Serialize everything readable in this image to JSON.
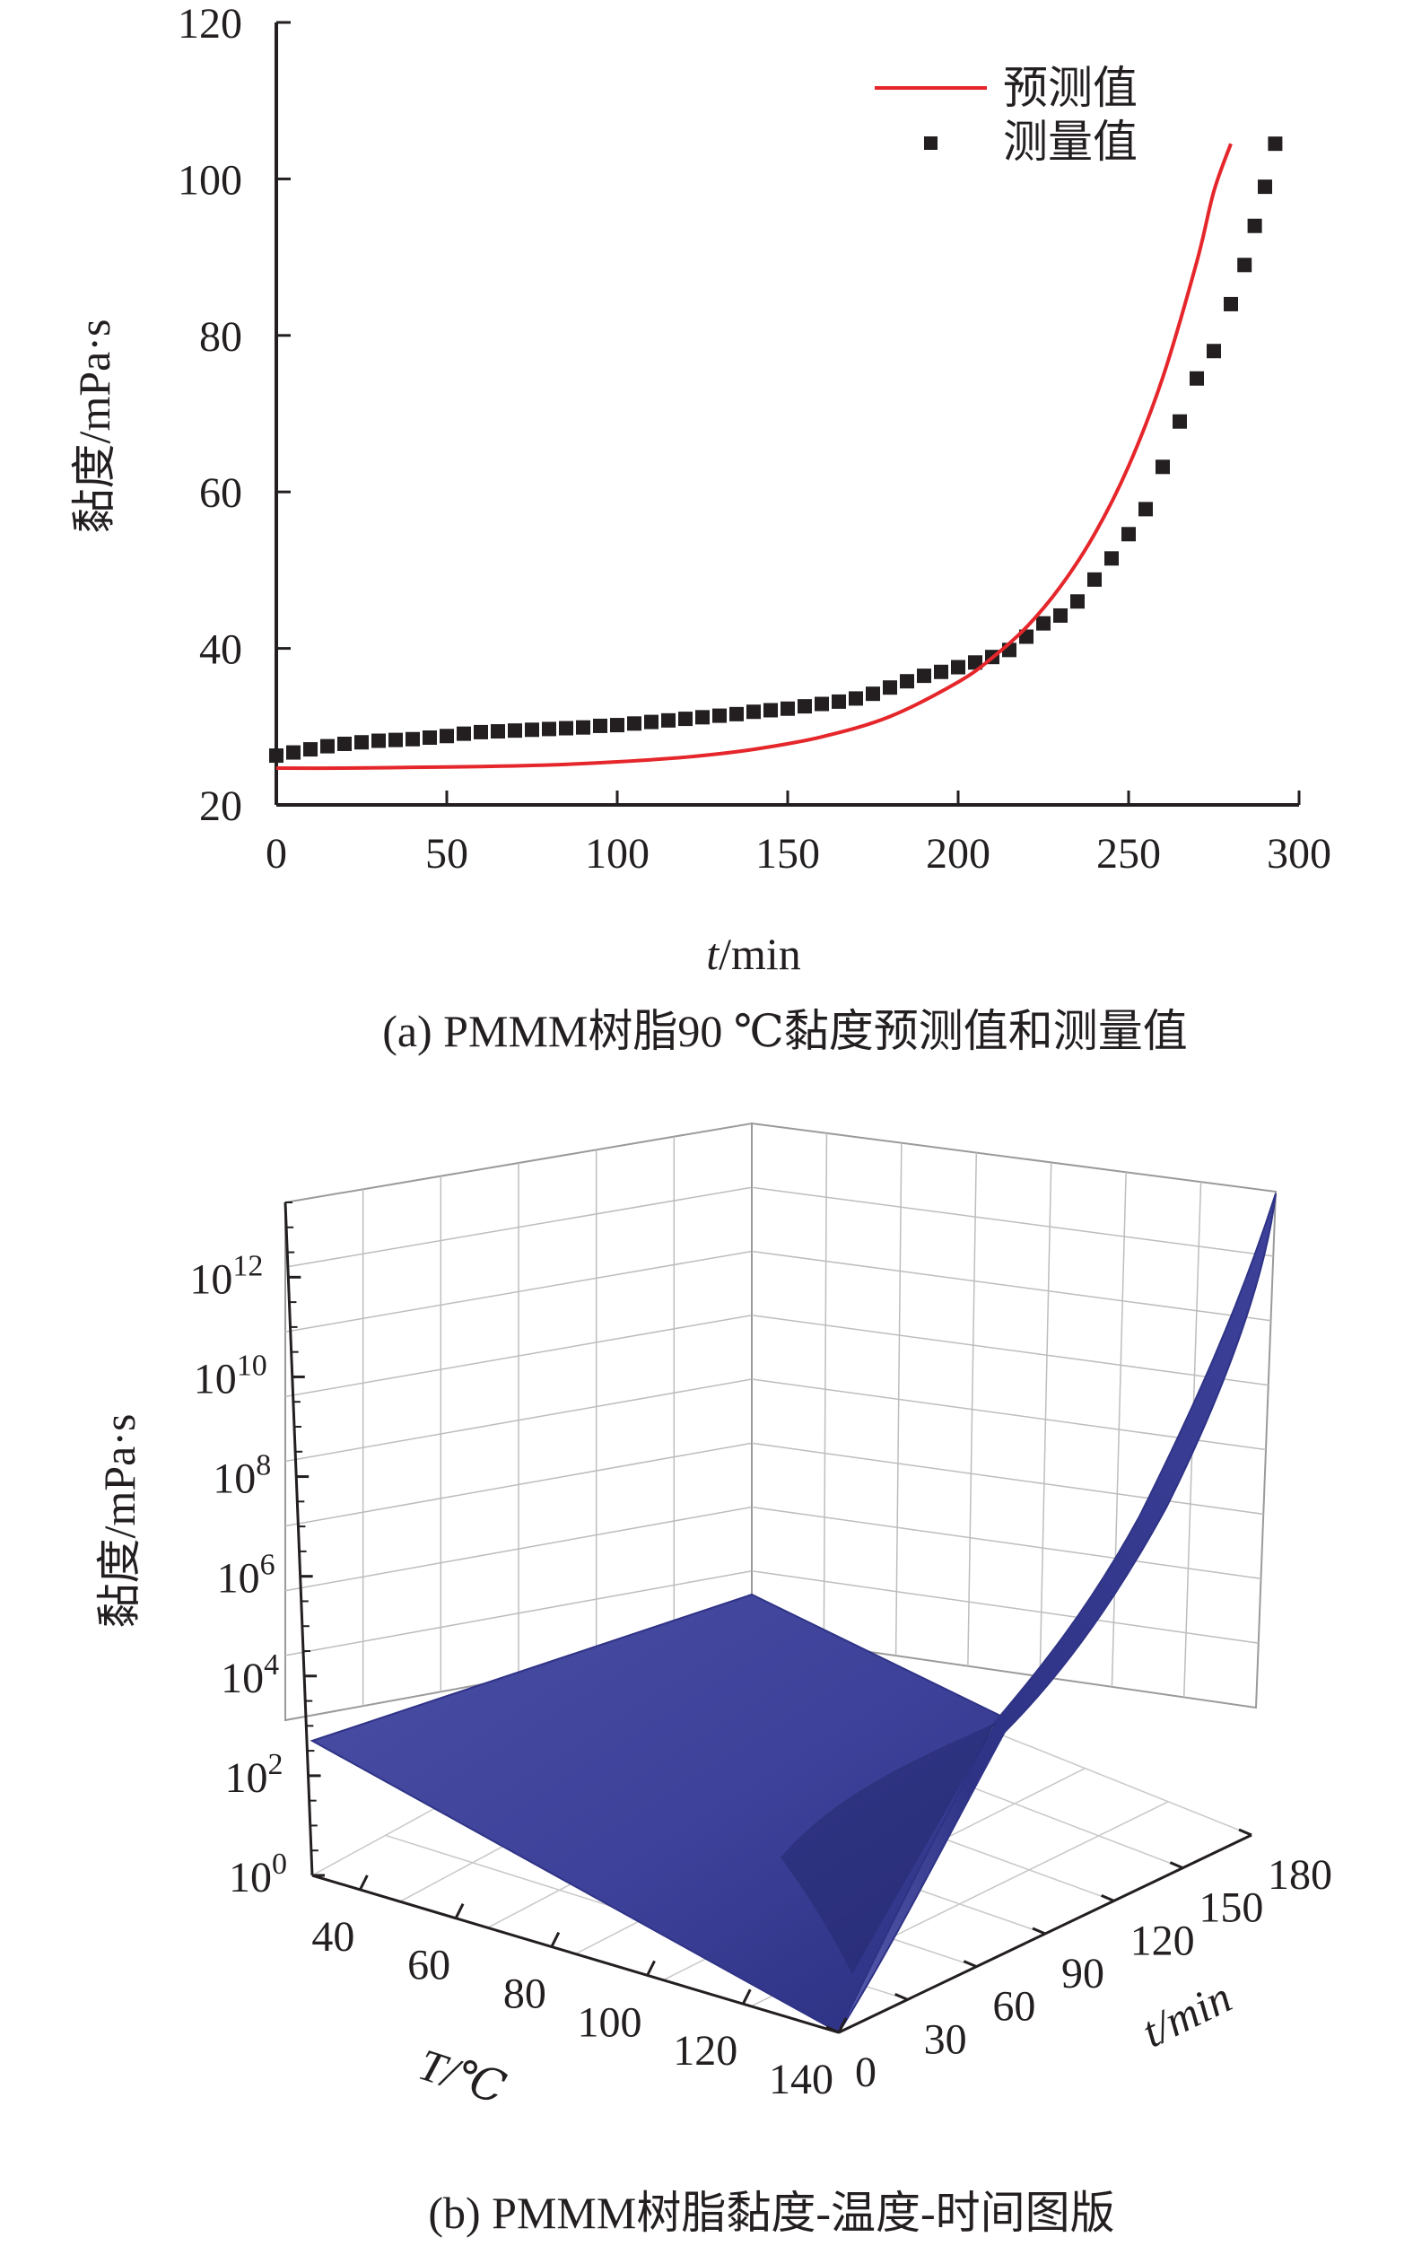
{
  "chart_data": [
    {
      "type": "line",
      "caption": "(a) PMMM树脂90 ℃黏度预测值和测量值",
      "xlabel": "t/min",
      "ylabel": "黏度/mPa·s",
      "xlim": [
        0,
        300
      ],
      "ylim": [
        20,
        120
      ],
      "xticks": [
        "0",
        "50",
        "100",
        "150",
        "200",
        "250",
        "300"
      ],
      "yticks": [
        "20",
        "40",
        "60",
        "80",
        "100",
        "120"
      ],
      "legend_position": "top-right",
      "colors": {
        "predicted": "#e5262b",
        "measured": "#231f20"
      },
      "series": [
        {
          "name": "预测值",
          "style": "line",
          "x": [
            0,
            20,
            40,
            60,
            80,
            100,
            120,
            140,
            160,
            180,
            200,
            210,
            220,
            230,
            240,
            250,
            260,
            270,
            275,
            280
          ],
          "y": [
            24.7,
            24.7,
            24.8,
            24.9,
            25.1,
            25.5,
            26.1,
            27.1,
            28.7,
            31.3,
            35.7,
            38.8,
            42.7,
            47.9,
            54.6,
            63.3,
            74.6,
            89.4,
            98.4,
            104.5
          ]
        },
        {
          "name": "测量值",
          "style": "scatter",
          "x": [
            0,
            5,
            10,
            15,
            20,
            25,
            30,
            35,
            40,
            45,
            50,
            55,
            60,
            65,
            70,
            75,
            80,
            85,
            90,
            95,
            100,
            105,
            110,
            115,
            120,
            125,
            130,
            135,
            140,
            145,
            150,
            155,
            160,
            165,
            170,
            175,
            180,
            185,
            190,
            195,
            200,
            205,
            210,
            215,
            220,
            225,
            230,
            235,
            240,
            245,
            250,
            255,
            260,
            265,
            270,
            275,
            280,
            284,
            287,
            290,
            293
          ],
          "y": [
            26.3,
            26.7,
            27.1,
            27.5,
            27.8,
            28.0,
            28.2,
            28.3,
            28.4,
            28.6,
            28.8,
            29.1,
            29.3,
            29.4,
            29.5,
            29.6,
            29.7,
            29.8,
            29.9,
            30.1,
            30.2,
            30.4,
            30.6,
            30.8,
            31.0,
            31.2,
            31.4,
            31.6,
            31.9,
            32.1,
            32.3,
            32.6,
            32.9,
            33.2,
            33.6,
            34.2,
            35.0,
            35.8,
            36.5,
            37.0,
            37.6,
            38.2,
            38.9,
            39.8,
            41.5,
            43.2,
            44.2,
            46.0,
            48.8,
            51.5,
            54.6,
            57.8,
            63.2,
            69.0,
            74.5,
            78.0,
            84.0,
            89.0,
            94.0,
            99.0,
            104.5
          ]
        }
      ]
    },
    {
      "type": "surface",
      "caption": "(b) PMMM树脂黏度-温度-时间图版",
      "xlabel": "T/℃",
      "ylabel": "t/min",
      "zlabel": "黏度/mPa·s",
      "x_ticks": [
        "40",
        "60",
        "80",
        "100",
        "120",
        "140"
      ],
      "y_ticks": [
        "0",
        "30",
        "60",
        "90",
        "120",
        "150",
        "180"
      ],
      "z_ticks": [
        {
          "base": "10",
          "exp": "0"
        },
        {
          "base": "10",
          "exp": "2"
        },
        {
          "base": "10",
          "exp": "4"
        },
        {
          "base": "10",
          "exp": "6"
        },
        {
          "base": "10",
          "exp": "8"
        },
        {
          "base": "10",
          "exp": "10"
        },
        {
          "base": "10",
          "exp": "12"
        }
      ],
      "z_scale": "log",
      "xlim": [
        30,
        140
      ],
      "ylim": [
        0,
        180
      ],
      "zlim_log10": [
        0,
        13.5
      ],
      "surface_color": "#3b3f96",
      "surface_corners": [
        {
          "T": 30,
          "t": 0,
          "log10_viscosity": 2.6
        },
        {
          "T": 30,
          "t": 180,
          "log10_viscosity": 3.3
        },
        {
          "T": 140,
          "t": 0,
          "log10_viscosity": 0.5
        },
        {
          "T": 140,
          "t": 180,
          "log10_viscosity": 13.5
        }
      ]
    }
  ]
}
